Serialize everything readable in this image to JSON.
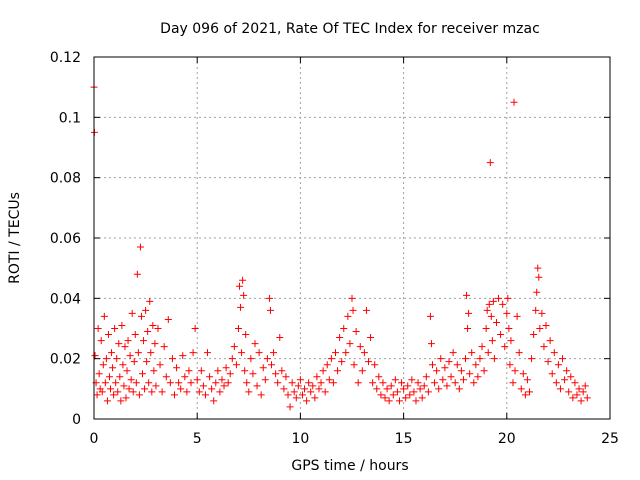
{
  "chart_data": {
    "type": "scatter",
    "title": "Day 096 of 2021, Rate Of TEC Index for receiver mzac",
    "xlabel": "GPS time / hours",
    "ylabel": "ROTI / TECUs",
    "xlim": [
      0,
      25
    ],
    "ylim": [
      0,
      0.12
    ],
    "x_ticks": [
      0,
      5,
      10,
      15,
      20,
      25
    ],
    "x_tick_labels": [
      "0",
      "5",
      "10",
      "15",
      "20",
      "25"
    ],
    "y_ticks": [
      0,
      0.02,
      0.04,
      0.06,
      0.08,
      0.1,
      0.12
    ],
    "y_tick_labels": [
      "0",
      "0.02",
      "0.04",
      "0.06",
      "0.08",
      "0.1",
      "0.12"
    ],
    "grid": true,
    "marker": "+",
    "color": "#ff0000",
    "series": [
      {
        "name": "ROTI",
        "points": [
          [
            0.0,
            0.11
          ],
          [
            0.02,
            0.095
          ],
          [
            0.05,
            0.021
          ],
          [
            0.1,
            0.012
          ],
          [
            0.15,
            0.008
          ],
          [
            0.2,
            0.03
          ],
          [
            0.25,
            0.015
          ],
          [
            0.3,
            0.01
          ],
          [
            0.35,
            0.026
          ],
          [
            0.4,
            0.009
          ],
          [
            0.45,
            0.018
          ],
          [
            0.5,
            0.034
          ],
          [
            0.55,
            0.012
          ],
          [
            0.6,
            0.02
          ],
          [
            0.65,
            0.006
          ],
          [
            0.7,
            0.028
          ],
          [
            0.75,
            0.014
          ],
          [
            0.8,
            0.01
          ],
          [
            0.85,
            0.022
          ],
          [
            0.9,
            0.017
          ],
          [
            0.95,
            0.008
          ],
          [
            1.0,
            0.03
          ],
          [
            1.05,
            0.012
          ],
          [
            1.1,
            0.02
          ],
          [
            1.15,
            0.009
          ],
          [
            1.2,
            0.025
          ],
          [
            1.25,
            0.014
          ],
          [
            1.3,
            0.006
          ],
          [
            1.35,
            0.031
          ],
          [
            1.4,
            0.018
          ],
          [
            1.45,
            0.011
          ],
          [
            1.5,
            0.024
          ],
          [
            1.55,
            0.007
          ],
          [
            1.6,
            0.016
          ],
          [
            1.65,
            0.026
          ],
          [
            1.7,
            0.01
          ],
          [
            1.75,
            0.021
          ],
          [
            1.8,
            0.013
          ],
          [
            1.85,
            0.035
          ],
          [
            1.9,
            0.009
          ],
          [
            1.95,
            0.019
          ],
          [
            2.0,
            0.028
          ],
          [
            2.05,
            0.012
          ],
          [
            2.1,
            0.048
          ],
          [
            2.15,
            0.022
          ],
          [
            2.2,
            0.008
          ],
          [
            2.25,
            0.057
          ],
          [
            2.3,
            0.034
          ],
          [
            2.35,
            0.015
          ],
          [
            2.4,
            0.026
          ],
          [
            2.45,
            0.01
          ],
          [
            2.5,
            0.036
          ],
          [
            2.55,
            0.019
          ],
          [
            2.6,
            0.029
          ],
          [
            2.65,
            0.012
          ],
          [
            2.7,
            0.039
          ],
          [
            2.75,
            0.022
          ],
          [
            2.8,
            0.009
          ],
          [
            2.85,
            0.031
          ],
          [
            2.9,
            0.016
          ],
          [
            2.95,
            0.025
          ],
          [
            3.0,
            0.011
          ],
          [
            3.1,
            0.03
          ],
          [
            3.2,
            0.018
          ],
          [
            3.3,
            0.009
          ],
          [
            3.4,
            0.024
          ],
          [
            3.5,
            0.014
          ],
          [
            3.6,
            0.033
          ],
          [
            3.7,
            0.012
          ],
          [
            3.8,
            0.02
          ],
          [
            3.9,
            0.008
          ],
          [
            4.0,
            0.017
          ],
          [
            4.1,
            0.012
          ],
          [
            4.2,
            0.01
          ],
          [
            4.3,
            0.021
          ],
          [
            4.4,
            0.014
          ],
          [
            4.5,
            0.009
          ],
          [
            4.6,
            0.016
          ],
          [
            4.7,
            0.012
          ],
          [
            4.8,
            0.022
          ],
          [
            4.9,
            0.03
          ],
          [
            5.0,
            0.013
          ],
          [
            5.1,
            0.009
          ],
          [
            5.2,
            0.016
          ],
          [
            5.3,
            0.011
          ],
          [
            5.4,
            0.008
          ],
          [
            5.5,
            0.022
          ],
          [
            5.6,
            0.014
          ],
          [
            5.7,
            0.01
          ],
          [
            5.8,
            0.006
          ],
          [
            5.9,
            0.012
          ],
          [
            6.0,
            0.016
          ],
          [
            6.1,
            0.009
          ],
          [
            6.2,
            0.013
          ],
          [
            6.3,
            0.011
          ],
          [
            6.4,
            0.017
          ],
          [
            6.5,
            0.012
          ],
          [
            6.6,
            0.015
          ],
          [
            6.7,
            0.02
          ],
          [
            6.8,
            0.024
          ],
          [
            6.9,
            0.018
          ],
          [
            7.0,
            0.03
          ],
          [
            7.05,
            0.044
          ],
          [
            7.1,
            0.037
          ],
          [
            7.15,
            0.022
          ],
          [
            7.2,
            0.046
          ],
          [
            7.25,
            0.041
          ],
          [
            7.3,
            0.016
          ],
          [
            7.35,
            0.028
          ],
          [
            7.4,
            0.012
          ],
          [
            7.5,
            0.009
          ],
          [
            7.6,
            0.02
          ],
          [
            7.7,
            0.015
          ],
          [
            7.8,
            0.025
          ],
          [
            7.9,
            0.011
          ],
          [
            8.0,
            0.022
          ],
          [
            8.1,
            0.008
          ],
          [
            8.2,
            0.017
          ],
          [
            8.3,
            0.013
          ],
          [
            8.4,
            0.02
          ],
          [
            8.5,
            0.04
          ],
          [
            8.55,
            0.036
          ],
          [
            8.6,
            0.018
          ],
          [
            8.7,
            0.022
          ],
          [
            8.8,
            0.015
          ],
          [
            8.9,
            0.012
          ],
          [
            9.0,
            0.027
          ],
          [
            9.1,
            0.016
          ],
          [
            9.2,
            0.01
          ],
          [
            9.3,
            0.014
          ],
          [
            9.4,
            0.008
          ],
          [
            9.5,
            0.004
          ],
          [
            9.6,
            0.012
          ],
          [
            9.7,
            0.009
          ],
          [
            9.8,
            0.007
          ],
          [
            9.9,
            0.011
          ],
          [
            10.0,
            0.013
          ],
          [
            10.1,
            0.008
          ],
          [
            10.2,
            0.01
          ],
          [
            10.3,
            0.006
          ],
          [
            10.4,
            0.012
          ],
          [
            10.5,
            0.009
          ],
          [
            10.6,
            0.011
          ],
          [
            10.7,
            0.007
          ],
          [
            10.8,
            0.014
          ],
          [
            10.9,
            0.01
          ],
          [
            11.0,
            0.012
          ],
          [
            11.1,
            0.016
          ],
          [
            11.2,
            0.009
          ],
          [
            11.3,
            0.018
          ],
          [
            11.4,
            0.013
          ],
          [
            11.5,
            0.02
          ],
          [
            11.6,
            0.012
          ],
          [
            11.7,
            0.022
          ],
          [
            11.8,
            0.016
          ],
          [
            11.9,
            0.027
          ],
          [
            12.0,
            0.019
          ],
          [
            12.1,
            0.03
          ],
          [
            12.2,
            0.022
          ],
          [
            12.3,
            0.034
          ],
          [
            12.4,
            0.025
          ],
          [
            12.5,
            0.04
          ],
          [
            12.55,
            0.036
          ],
          [
            12.6,
            0.018
          ],
          [
            12.7,
            0.029
          ],
          [
            12.8,
            0.012
          ],
          [
            12.9,
            0.024
          ],
          [
            13.0,
            0.016
          ],
          [
            13.1,
            0.022
          ],
          [
            13.2,
            0.036
          ],
          [
            13.3,
            0.019
          ],
          [
            13.4,
            0.027
          ],
          [
            13.5,
            0.012
          ],
          [
            13.6,
            0.018
          ],
          [
            13.7,
            0.01
          ],
          [
            13.8,
            0.014
          ],
          [
            13.9,
            0.008
          ],
          [
            14.0,
            0.012
          ],
          [
            14.1,
            0.007
          ],
          [
            14.2,
            0.01
          ],
          [
            14.3,
            0.006
          ],
          [
            14.4,
            0.011
          ],
          [
            14.5,
            0.008
          ],
          [
            14.6,
            0.013
          ],
          [
            14.7,
            0.009
          ],
          [
            14.8,
            0.006
          ],
          [
            14.9,
            0.012
          ],
          [
            15.0,
            0.01
          ],
          [
            15.1,
            0.007
          ],
          [
            15.2,
            0.011
          ],
          [
            15.3,
            0.008
          ],
          [
            15.4,
            0.013
          ],
          [
            15.5,
            0.009
          ],
          [
            15.6,
            0.006
          ],
          [
            15.7,
            0.012
          ],
          [
            15.8,
            0.01
          ],
          [
            15.9,
            0.007
          ],
          [
            16.0,
            0.011
          ],
          [
            16.1,
            0.014
          ],
          [
            16.2,
            0.009
          ],
          [
            16.3,
            0.034
          ],
          [
            16.35,
            0.025
          ],
          [
            16.4,
            0.018
          ],
          [
            16.5,
            0.012
          ],
          [
            16.6,
            0.016
          ],
          [
            16.7,
            0.01
          ],
          [
            16.8,
            0.02
          ],
          [
            16.9,
            0.013
          ],
          [
            17.0,
            0.017
          ],
          [
            17.1,
            0.011
          ],
          [
            17.2,
            0.019
          ],
          [
            17.3,
            0.014
          ],
          [
            17.4,
            0.022
          ],
          [
            17.5,
            0.012
          ],
          [
            17.6,
            0.018
          ],
          [
            17.7,
            0.01
          ],
          [
            17.8,
            0.016
          ],
          [
            17.9,
            0.013
          ],
          [
            18.0,
            0.02
          ],
          [
            18.05,
            0.041
          ],
          [
            18.1,
            0.03
          ],
          [
            18.15,
            0.035
          ],
          [
            18.2,
            0.015
          ],
          [
            18.3,
            0.022
          ],
          [
            18.4,
            0.012
          ],
          [
            18.5,
            0.018
          ],
          [
            18.6,
            0.014
          ],
          [
            18.7,
            0.02
          ],
          [
            18.8,
            0.024
          ],
          [
            18.9,
            0.016
          ],
          [
            19.0,
            0.03
          ],
          [
            19.05,
            0.036
          ],
          [
            19.1,
            0.022
          ],
          [
            19.15,
            0.038
          ],
          [
            19.2,
            0.085
          ],
          [
            19.25,
            0.034
          ],
          [
            19.3,
            0.026
          ],
          [
            19.35,
            0.039
          ],
          [
            19.4,
            0.02
          ],
          [
            19.5,
            0.032
          ],
          [
            19.6,
            0.04
          ],
          [
            19.7,
            0.028
          ],
          [
            19.8,
            0.038
          ],
          [
            19.9,
            0.024
          ],
          [
            20.0,
            0.035
          ],
          [
            20.05,
            0.04
          ],
          [
            20.1,
            0.03
          ],
          [
            20.15,
            0.018
          ],
          [
            20.2,
            0.026
          ],
          [
            20.3,
            0.012
          ],
          [
            20.35,
            0.105
          ],
          [
            20.4,
            0.016
          ],
          [
            20.5,
            0.034
          ],
          [
            20.6,
            0.022
          ],
          [
            20.7,
            0.01
          ],
          [
            20.8,
            0.015
          ],
          [
            20.9,
            0.008
          ],
          [
            21.0,
            0.013
          ],
          [
            21.1,
            0.009
          ],
          [
            21.2,
            0.02
          ],
          [
            21.3,
            0.028
          ],
          [
            21.4,
            0.036
          ],
          [
            21.45,
            0.042
          ],
          [
            21.5,
            0.05
          ],
          [
            21.55,
            0.047
          ],
          [
            21.6,
            0.03
          ],
          [
            21.7,
            0.035
          ],
          [
            21.8,
            0.024
          ],
          [
            21.9,
            0.031
          ],
          [
            22.0,
            0.019
          ],
          [
            22.1,
            0.026
          ],
          [
            22.2,
            0.015
          ],
          [
            22.3,
            0.022
          ],
          [
            22.4,
            0.012
          ],
          [
            22.5,
            0.018
          ],
          [
            22.6,
            0.01
          ],
          [
            22.7,
            0.02
          ],
          [
            22.8,
            0.013
          ],
          [
            22.9,
            0.016
          ],
          [
            23.0,
            0.009
          ],
          [
            23.1,
            0.014
          ],
          [
            23.2,
            0.007
          ],
          [
            23.3,
            0.012
          ],
          [
            23.4,
            0.008
          ],
          [
            23.5,
            0.01
          ],
          [
            23.6,
            0.006
          ],
          [
            23.7,
            0.009
          ],
          [
            23.8,
            0.011
          ],
          [
            23.9,
            0.007
          ]
        ]
      }
    ]
  }
}
